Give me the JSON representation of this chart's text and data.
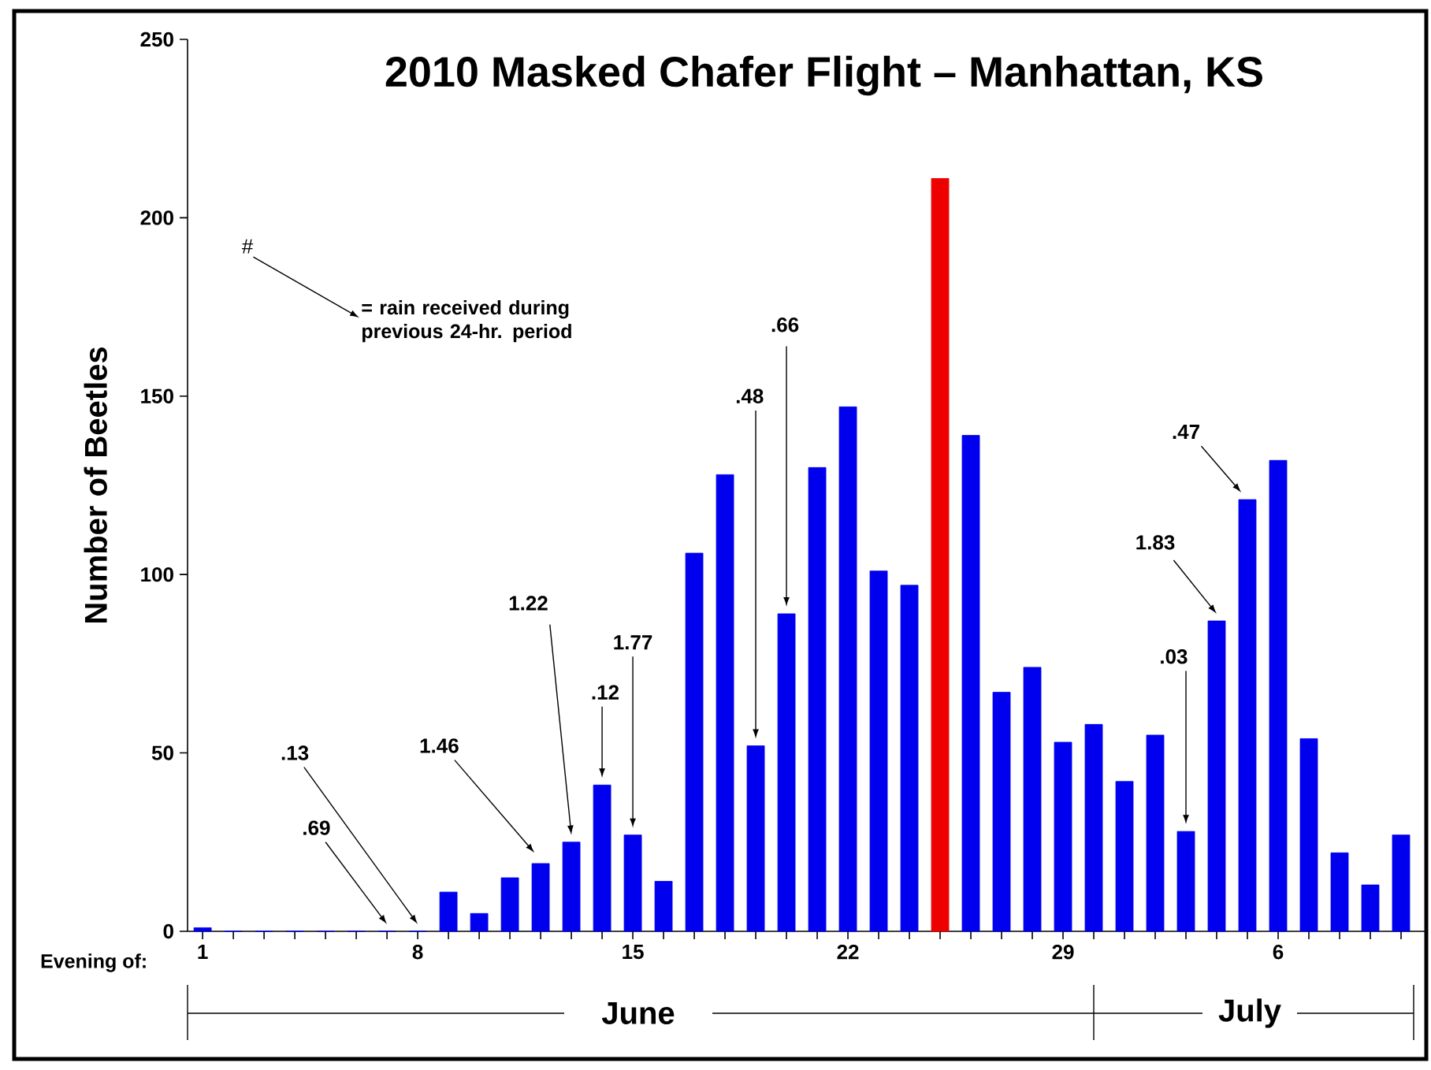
{
  "chart_data": {
    "type": "bar",
    "title": "2010 Masked Chafer Flight – Manhattan, KS",
    "ylabel": "Number of Beetles",
    "categories": [
      "1",
      null,
      null,
      null,
      null,
      null,
      null,
      "8",
      null,
      null,
      null,
      null,
      null,
      null,
      "15",
      null,
      null,
      null,
      null,
      null,
      null,
      "22",
      null,
      null,
      null,
      null,
      null,
      null,
      "29",
      null,
      null,
      null,
      null,
      null,
      null,
      "6",
      null,
      null,
      null,
      null
    ],
    "values": [
      1,
      0,
      0,
      0,
      0,
      0,
      0,
      0,
      11,
      5,
      15,
      19,
      25,
      41,
      27,
      14,
      106,
      128,
      52,
      89,
      130,
      147,
      101,
      97,
      211,
      139,
      67,
      74,
      53,
      58,
      42,
      55,
      28,
      87,
      121,
      132,
      54,
      22,
      13,
      27
    ],
    "colors": [
      "#0000ee",
      "#0000ee",
      "#0000ee",
      "#0000ee",
      "#0000ee",
      "#0000ee",
      "#0000ee",
      "#0000ee",
      "#0000ee",
      "#0000ee",
      "#0000ee",
      "#0000ee",
      "#0000ee",
      "#0000ee",
      "#0000ee",
      "#0000ee",
      "#0000ee",
      "#0000ee",
      "#0000ee",
      "#0000ee",
      "#0000ee",
      "#0000ee",
      "#0000ee",
      "#0000ee",
      "#ee0000",
      "#0000ee",
      "#0000ee",
      "#0000ee",
      "#0000ee",
      "#0000ee",
      "#0000ee",
      "#0000ee",
      "#0000ee",
      "#0000ee",
      "#0000ee",
      "#0000ee",
      "#0000ee",
      "#0000ee",
      "#0000ee",
      "#0000ee"
    ],
    "ylim": [
      0,
      250
    ],
    "yticks": [
      0,
      50,
      100,
      150,
      200,
      250
    ],
    "annotations": [
      "#",
      "= rain received during previous 24-hr. period",
      ".13",
      ".69",
      "1.46",
      "1.22",
      ".12",
      "1.77",
      ".48",
      ".66",
      ".03",
      "1.83",
      ".47",
      "Evening of:",
      "June",
      "July"
    ]
  }
}
